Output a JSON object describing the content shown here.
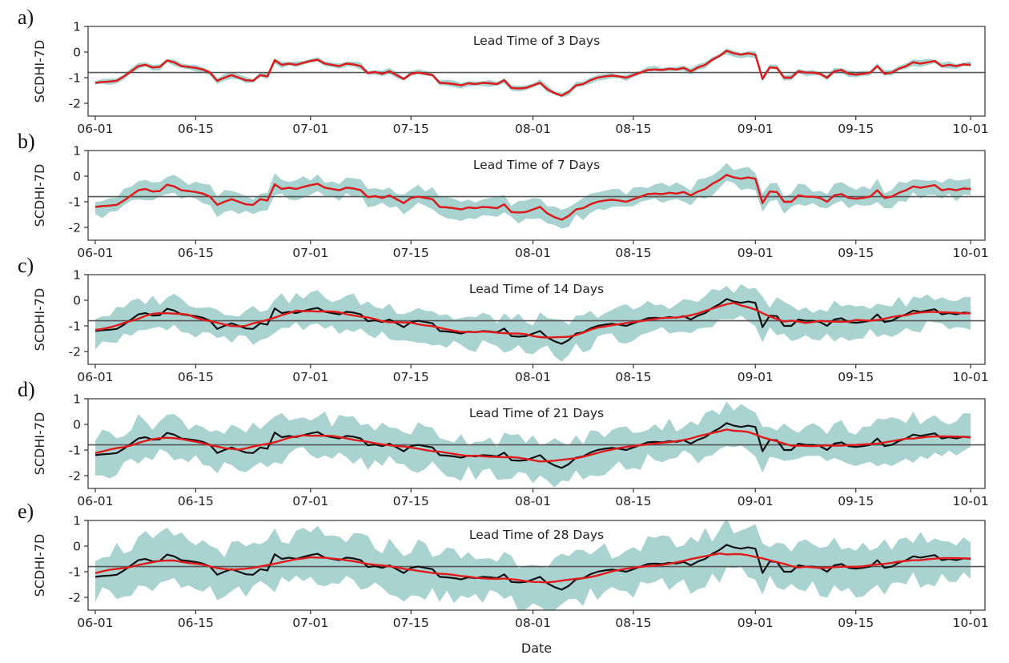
{
  "chart_data": {
    "type": "line",
    "xlabel": "Date",
    "ylabel": "SCDHI-7D",
    "ylim": [
      -2.5,
      1
    ],
    "yticks": [
      1,
      0,
      -1,
      -2
    ],
    "xlim": [
      "05-31",
      "10-03"
    ],
    "xtick_labels": [
      "06-01",
      "06-15",
      "07-01",
      "07-15",
      "08-01",
      "08-15",
      "09-01",
      "09-15",
      "10-01"
    ],
    "threshold_value": -0.8,
    "colors": {
      "observed": "#111111",
      "forecast_mean": "#e11b1b",
      "ensemble_band": "#a9d3d0",
      "threshold": "#555555"
    },
    "panels": [
      {
        "letter": "a)",
        "title": "Lead Time of 3 Days",
        "smooth": 0.0,
        "noise": 0.0,
        "band_width": 0.12
      },
      {
        "letter": "b)",
        "title": "Lead Time of 7 Days",
        "smooth": 0.0,
        "noise": 0.0,
        "band_width": 0.4
      },
      {
        "letter": "c)",
        "title": "Lead Time of 14 Days",
        "smooth": 0.45,
        "noise": 0.0,
        "band_width": 0.65
      },
      {
        "letter": "d)",
        "title": "Lead Time of 21 Days",
        "smooth": 0.65,
        "noise": 0.0,
        "band_width": 0.8
      },
      {
        "letter": "e)",
        "title": "Lead Time of 28 Days",
        "smooth": 0.85,
        "noise": 0.0,
        "band_width": 0.95
      }
    ],
    "observed_series": {
      "name": "",
      "points": [
        [
          "06-01",
          -1.2
        ],
        [
          "06-02",
          -1.17
        ],
        [
          "06-03",
          -1.15
        ],
        [
          "06-04",
          -1.12
        ],
        [
          "06-05",
          -0.95
        ],
        [
          "06-06",
          -0.75
        ],
        [
          "06-07",
          -0.55
        ],
        [
          "06-08",
          -0.5
        ],
        [
          "06-09",
          -0.6
        ],
        [
          "06-10",
          -0.58
        ],
        [
          "06-11",
          -0.33
        ],
        [
          "06-12",
          -0.4
        ],
        [
          "06-13",
          -0.55
        ],
        [
          "06-14",
          -0.58
        ],
        [
          "06-15",
          -0.62
        ],
        [
          "06-16",
          -0.68
        ],
        [
          "06-17",
          -0.8
        ],
        [
          "06-18",
          -1.12
        ],
        [
          "06-19",
          -1.0
        ],
        [
          "06-20",
          -0.9
        ],
        [
          "06-21",
          -1.0
        ],
        [
          "06-22",
          -1.1
        ],
        [
          "06-23",
          -1.12
        ],
        [
          "06-24",
          -0.9
        ],
        [
          "06-25",
          -0.95
        ],
        [
          "06-26",
          -0.32
        ],
        [
          "06-27",
          -0.5
        ],
        [
          "06-28",
          -0.45
        ],
        [
          "06-29",
          -0.5
        ],
        [
          "06-30",
          -0.42
        ],
        [
          "07-01",
          -0.35
        ],
        [
          "07-02",
          -0.3
        ],
        [
          "07-03",
          -0.45
        ],
        [
          "07-04",
          -0.5
        ],
        [
          "07-05",
          -0.55
        ],
        [
          "07-06",
          -0.45
        ],
        [
          "07-07",
          -0.48
        ],
        [
          "07-08",
          -0.55
        ],
        [
          "07-09",
          -0.82
        ],
        [
          "07-10",
          -0.78
        ],
        [
          "07-11",
          -0.85
        ],
        [
          "07-12",
          -0.75
        ],
        [
          "07-13",
          -0.9
        ],
        [
          "07-14",
          -1.05
        ],
        [
          "07-15",
          -0.85
        ],
        [
          "07-16",
          -0.8
        ],
        [
          "07-17",
          -0.85
        ],
        [
          "07-18",
          -0.9
        ],
        [
          "07-19",
          -1.2
        ],
        [
          "07-20",
          -1.22
        ],
        [
          "07-21",
          -1.25
        ],
        [
          "07-22",
          -1.3
        ],
        [
          "07-23",
          -1.22
        ],
        [
          "07-24",
          -1.25
        ],
        [
          "07-25",
          -1.2
        ],
        [
          "07-26",
          -1.22
        ],
        [
          "07-27",
          -1.25
        ],
        [
          "07-28",
          -1.1
        ],
        [
          "07-29",
          -1.4
        ],
        [
          "07-30",
          -1.42
        ],
        [
          "07-31",
          -1.4
        ],
        [
          "08-01",
          -1.3
        ],
        [
          "08-02",
          -1.2
        ],
        [
          "08-03",
          -1.45
        ],
        [
          "08-04",
          -1.6
        ],
        [
          "08-05",
          -1.7
        ],
        [
          "08-06",
          -1.55
        ],
        [
          "08-07",
          -1.3
        ],
        [
          "08-08",
          -1.25
        ],
        [
          "08-09",
          -1.1
        ],
        [
          "08-10",
          -1.0
        ],
        [
          "08-11",
          -0.95
        ],
        [
          "08-12",
          -0.92
        ],
        [
          "08-13",
          -0.95
        ],
        [
          "08-14",
          -1.0
        ],
        [
          "08-15",
          -0.9
        ],
        [
          "08-16",
          -0.8
        ],
        [
          "08-17",
          -0.7
        ],
        [
          "08-18",
          -0.68
        ],
        [
          "08-19",
          -0.7
        ],
        [
          "08-20",
          -0.65
        ],
        [
          "08-21",
          -0.68
        ],
        [
          "08-22",
          -0.62
        ],
        [
          "08-23",
          -0.75
        ],
        [
          "08-24",
          -0.6
        ],
        [
          "08-25",
          -0.5
        ],
        [
          "08-26",
          -0.3
        ],
        [
          "08-27",
          -0.15
        ],
        [
          "08-28",
          0.05
        ],
        [
          "08-29",
          -0.05
        ],
        [
          "08-30",
          -0.1
        ],
        [
          "08-31",
          -0.05
        ],
        [
          "09-01",
          -0.1
        ],
        [
          "09-02",
          -1.05
        ],
        [
          "09-03",
          -0.6
        ],
        [
          "09-04",
          -0.62
        ],
        [
          "09-05",
          -1.0
        ],
        [
          "09-06",
          -1.0
        ],
        [
          "09-07",
          -0.75
        ],
        [
          "09-08",
          -0.8
        ],
        [
          "09-09",
          -0.8
        ],
        [
          "09-10",
          -0.85
        ],
        [
          "09-11",
          -1.0
        ],
        [
          "09-12",
          -0.75
        ],
        [
          "09-13",
          -0.7
        ],
        [
          "09-14",
          -0.85
        ],
        [
          "09-15",
          -0.88
        ],
        [
          "09-16",
          -0.85
        ],
        [
          "09-17",
          -0.8
        ],
        [
          "09-18",
          -0.55
        ],
        [
          "09-19",
          -0.85
        ],
        [
          "09-20",
          -0.8
        ],
        [
          "09-21",
          -0.65
        ],
        [
          "09-22",
          -0.55
        ],
        [
          "09-23",
          -0.4
        ],
        [
          "09-24",
          -0.45
        ],
        [
          "09-25",
          -0.4
        ],
        [
          "09-26",
          -0.35
        ],
        [
          "09-27",
          -0.55
        ],
        [
          "09-28",
          -0.5
        ],
        [
          "09-29",
          -0.55
        ],
        [
          "09-30",
          -0.48
        ],
        [
          "10-01",
          -0.5
        ]
      ]
    }
  }
}
